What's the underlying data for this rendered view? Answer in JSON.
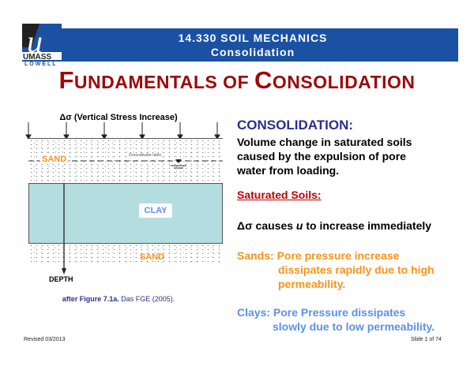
{
  "header": {
    "course": "14.330 SOIL MECHANICS",
    "topic": "Consolidation"
  },
  "logo": {
    "text": "UMASS LOWELL",
    "top": "UMASS",
    "bottom": "LOWELL"
  },
  "title": {
    "f1": "F",
    "r1": "UNDAMENTALS OF ",
    "f2": "C",
    "r2": "ONSOLIDATION"
  },
  "figure": {
    "load_label": "Δσ (Vertical Stress Increase)",
    "sand_top": "SAND",
    "groundwater": "Groundwater table",
    "clay": "CLAY",
    "sand_bottom": "SAND",
    "depth": "DEPTH",
    "caption_bold": "after Figure 7.1a.",
    "caption_rest": " Das FGE (2005)."
  },
  "content": {
    "heading": "CONSOLIDATION:",
    "definition": [
      "Volume change in saturated soils",
      "caused by the expulsion of pore",
      "water from loading."
    ],
    "saturated": "Saturated Soils:",
    "stress_pre": "Δσ causes ",
    "stress_u": "u",
    "stress_post": " to increase immediately",
    "sands": [
      "Sands: Pore pressure increase",
      "dissipates rapidly due to high",
      "permeability."
    ],
    "clays": [
      "Clays: Pore Pressure dissipates",
      "slowly due to low permeability."
    ]
  },
  "footer": {
    "revised": "Revised 03/2013",
    "slide": "Slide 1 of 74"
  },
  "colors": {
    "header": "#1b51a3",
    "title": "#9c0a0a",
    "heading": "#2b2f8c",
    "sand": "#f7941d",
    "clay_text": "#5b8ff0",
    "clay_fill": "#b4dde0"
  }
}
